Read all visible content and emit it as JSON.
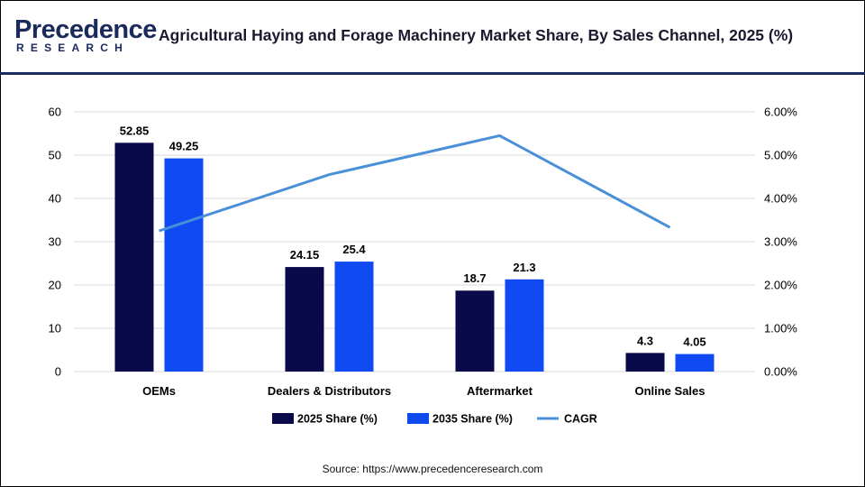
{
  "brand": {
    "name": "Precedence",
    "subname": "RESEARCH"
  },
  "title": "Agricultural Haying and Forage Machinery Market Share, By Sales Channel, 2025 (%)",
  "source": "Source: https://www.precedenceresearch.com",
  "colors": {
    "brand": "#1a2a5c",
    "series_2025": "#0a0a4a",
    "series_2035": "#0f4af2",
    "cagr": "#4a90d9",
    "grid": "#d9d9d9"
  },
  "chart_data": {
    "type": "bar",
    "categories": [
      "OEMs",
      "Dealers & Distributors",
      "Aftermarket",
      "Online Sales"
    ],
    "series": [
      {
        "name": "2025 Share (%)",
        "type": "bar",
        "axis": "left",
        "values": [
          52.85,
          24.15,
          18.7,
          4.3
        ]
      },
      {
        "name": "2035 Share (%)",
        "type": "bar",
        "axis": "left",
        "values": [
          49.25,
          25.4,
          21.3,
          4.05
        ]
      },
      {
        "name": "CAGR",
        "type": "line",
        "axis": "right",
        "values": [
          3.25,
          4.55,
          5.45,
          3.33
        ]
      }
    ],
    "data_labels": [
      [
        "52.85",
        "24.15",
        "18.7",
        "4.3"
      ],
      [
        "49.25",
        "25.4",
        "21.3",
        "4.05"
      ]
    ],
    "ylim": [
      0,
      60
    ],
    "y_ticks": [
      "0",
      "10",
      "20",
      "30",
      "40",
      "50",
      "60"
    ],
    "y2lim": [
      0,
      6
    ],
    "y2_ticks": [
      "0.00%",
      "1.00%",
      "2.00%",
      "3.00%",
      "4.00%",
      "5.00%",
      "6.00%"
    ],
    "grid": true,
    "legend": "bottom"
  }
}
